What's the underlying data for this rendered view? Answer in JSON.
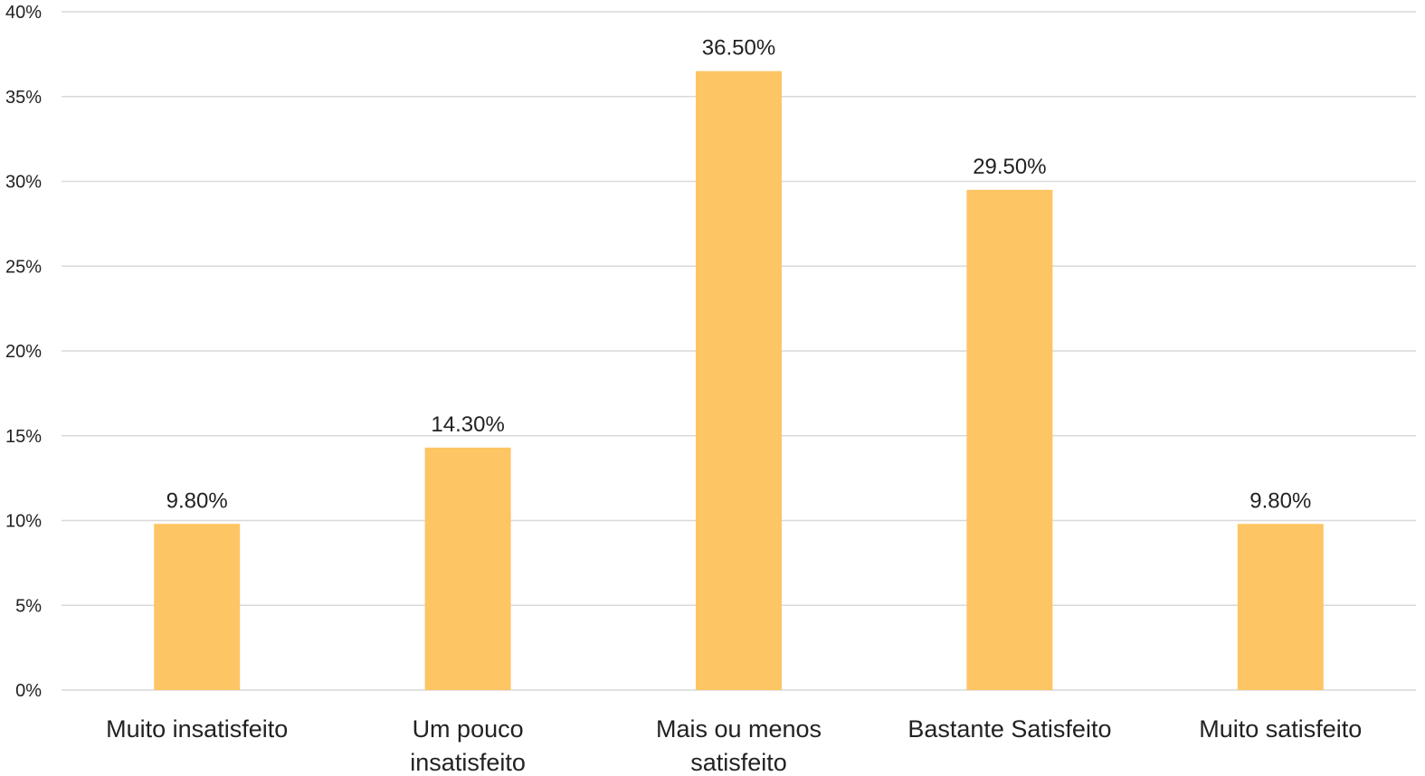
{
  "chart_data": {
    "type": "bar",
    "categories": [
      "Muito insatisfeito",
      "Um pouco insatisfeito",
      "Mais ou menos satisfeito",
      "Bastante Satisfeito",
      "Muito satisfeito"
    ],
    "values": [
      9.8,
      14.3,
      36.5,
      29.5,
      9.8
    ],
    "data_labels": [
      "9.80%",
      "14.30%",
      "36.50%",
      "29.50%",
      "9.80%"
    ],
    "y_ticks": [
      "0%",
      "5%",
      "10%",
      "15%",
      "20%",
      "25%",
      "30%",
      "35%",
      "40%"
    ],
    "ylim": [
      0,
      40
    ],
    "grid": true,
    "legend": "none",
    "colors": {
      "bar": "#FDC563",
      "grid": "#D9D9D9",
      "text": "#222222"
    }
  }
}
